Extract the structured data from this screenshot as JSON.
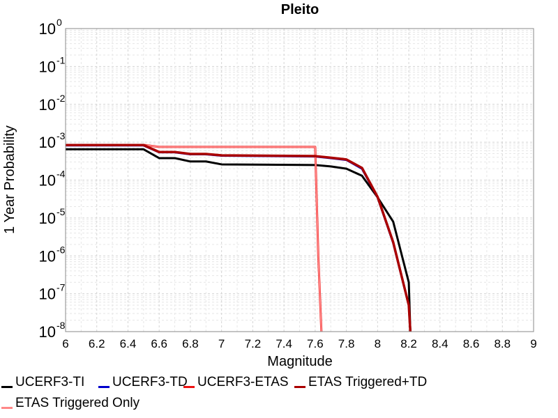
{
  "chart_data": {
    "type": "line",
    "title": "Pleito",
    "xlabel": "Magnitude",
    "ylabel": "1 Year Probability",
    "xlim": [
      6,
      9
    ],
    "ylim": [
      1e-08,
      1
    ],
    "yscale": "log",
    "grid": true,
    "legend_position": "bottom",
    "x_ticks": [
      "6",
      "6.2",
      "6.4",
      "6.6",
      "6.8",
      "7",
      "7.2",
      "7.4",
      "7.6",
      "7.8",
      "8",
      "8.2",
      "8.4",
      "8.6",
      "8.8",
      "9"
    ],
    "y_ticks": [
      {
        "base": "10",
        "exp": "0"
      },
      {
        "base": "10",
        "exp": "-1"
      },
      {
        "base": "10",
        "exp": "-2"
      },
      {
        "base": "10",
        "exp": "-3"
      },
      {
        "base": "10",
        "exp": "-4"
      },
      {
        "base": "10",
        "exp": "-5"
      },
      {
        "base": "10",
        "exp": "-6"
      },
      {
        "base": "10",
        "exp": "-7"
      },
      {
        "base": "10",
        "exp": "-8"
      }
    ],
    "series": [
      {
        "name": "UCERF3-TI",
        "color": "#000000",
        "x": [
          6.0,
          6.5,
          6.6,
          6.7,
          6.8,
          6.9,
          7.0,
          7.6,
          7.7,
          7.8,
          7.9,
          8.0,
          8.1,
          8.2,
          8.21
        ],
        "y": [
          0.00065,
          0.00065,
          0.00038,
          0.00038,
          0.00031,
          0.00031,
          0.00026,
          0.00025,
          0.00023,
          0.0002,
          0.00013,
          3.5e-05,
          8e-06,
          2e-07,
          1e-08
        ]
      },
      {
        "name": "UCERF3-TD",
        "color": "#0000cc",
        "x": [
          6.0,
          6.5,
          6.6,
          6.7,
          6.8,
          6.9,
          7.0,
          7.6,
          7.7,
          7.8,
          7.9,
          8.0,
          8.1,
          8.2,
          8.21
        ],
        "y": [
          0.00082,
          0.00082,
          0.00054,
          0.00054,
          0.00048,
          0.00048,
          0.00044,
          0.00042,
          0.00038,
          0.00034,
          0.0002,
          3.5e-05,
          2.2e-06,
          5e-08,
          1e-08
        ]
      },
      {
        "name": "UCERF3-ETAS",
        "color": "#ee1111",
        "x": [
          6.0,
          6.5,
          6.6,
          7.6,
          7.62,
          7.64
        ],
        "y": [
          0.00085,
          0.00085,
          0.00075,
          0.00075,
          1e-06,
          1e-08
        ]
      },
      {
        "name": "ETAS Triggered+TD",
        "color": "#aa0000",
        "x": [
          6.0,
          6.5,
          6.6,
          6.7,
          6.8,
          6.9,
          7.0,
          7.6,
          7.7,
          7.8,
          7.9,
          8.0,
          8.1,
          8.2,
          8.21
        ],
        "y": [
          0.00084,
          0.00084,
          0.00055,
          0.00055,
          0.00049,
          0.00049,
          0.00045,
          0.00043,
          0.00039,
          0.00035,
          0.00021,
          3.6e-05,
          2.3e-06,
          5e-08,
          1e-08
        ]
      },
      {
        "name": "ETAS Triggered Only",
        "color": "#ff8888",
        "x": [
          6.0,
          6.5,
          6.6,
          7.6,
          7.62,
          7.64
        ],
        "y": [
          0.00085,
          0.00085,
          0.00075,
          0.00075,
          1e-06,
          1e-08
        ]
      }
    ]
  }
}
